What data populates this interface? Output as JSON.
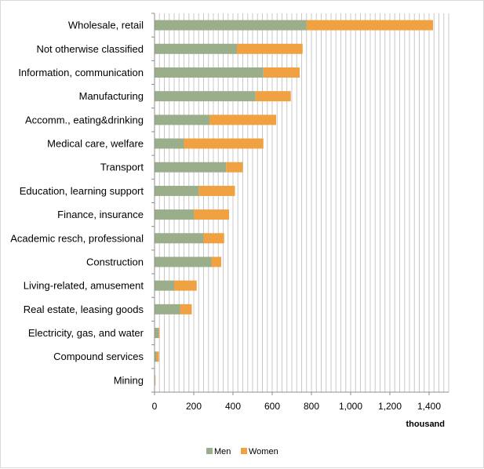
{
  "chart_data": {
    "type": "bar",
    "orientation": "horizontal",
    "stacked": true,
    "categories": [
      "Wholesale, retail",
      "Not otherwise classified",
      "Information, communication",
      "Manufacturing",
      "Accomm., eating&drinking",
      "Medical care, welfare",
      "Transport",
      "Education, learning support",
      "Finance, insurance",
      "Academic resch, professional",
      "Construction",
      "Living-related, amusement",
      "Real estate, leasing goods",
      "Electricity, gas, and water",
      "Compound services",
      "Mining"
    ],
    "series": [
      {
        "name": "Men",
        "color": "#9bae8c",
        "values": [
          775,
          420,
          555,
          515,
          280,
          150,
          365,
          225,
          200,
          250,
          290,
          100,
          130,
          20,
          10,
          3
        ]
      },
      {
        "name": "Women",
        "color": "#f0a242",
        "values": [
          645,
          335,
          185,
          180,
          340,
          405,
          85,
          185,
          180,
          105,
          50,
          115,
          60,
          5,
          12,
          2
        ]
      }
    ],
    "xlim": [
      0,
      1500
    ],
    "xticks": [
      0,
      200,
      400,
      600,
      800,
      1000,
      1200,
      1400
    ],
    "xtick_labels": [
      "0",
      "200",
      "400",
      "600",
      "800",
      "1,000",
      "1,200",
      "1,400"
    ],
    "xlabel": "thousand",
    "grid": "vertical",
    "legend_position": "bottom"
  }
}
